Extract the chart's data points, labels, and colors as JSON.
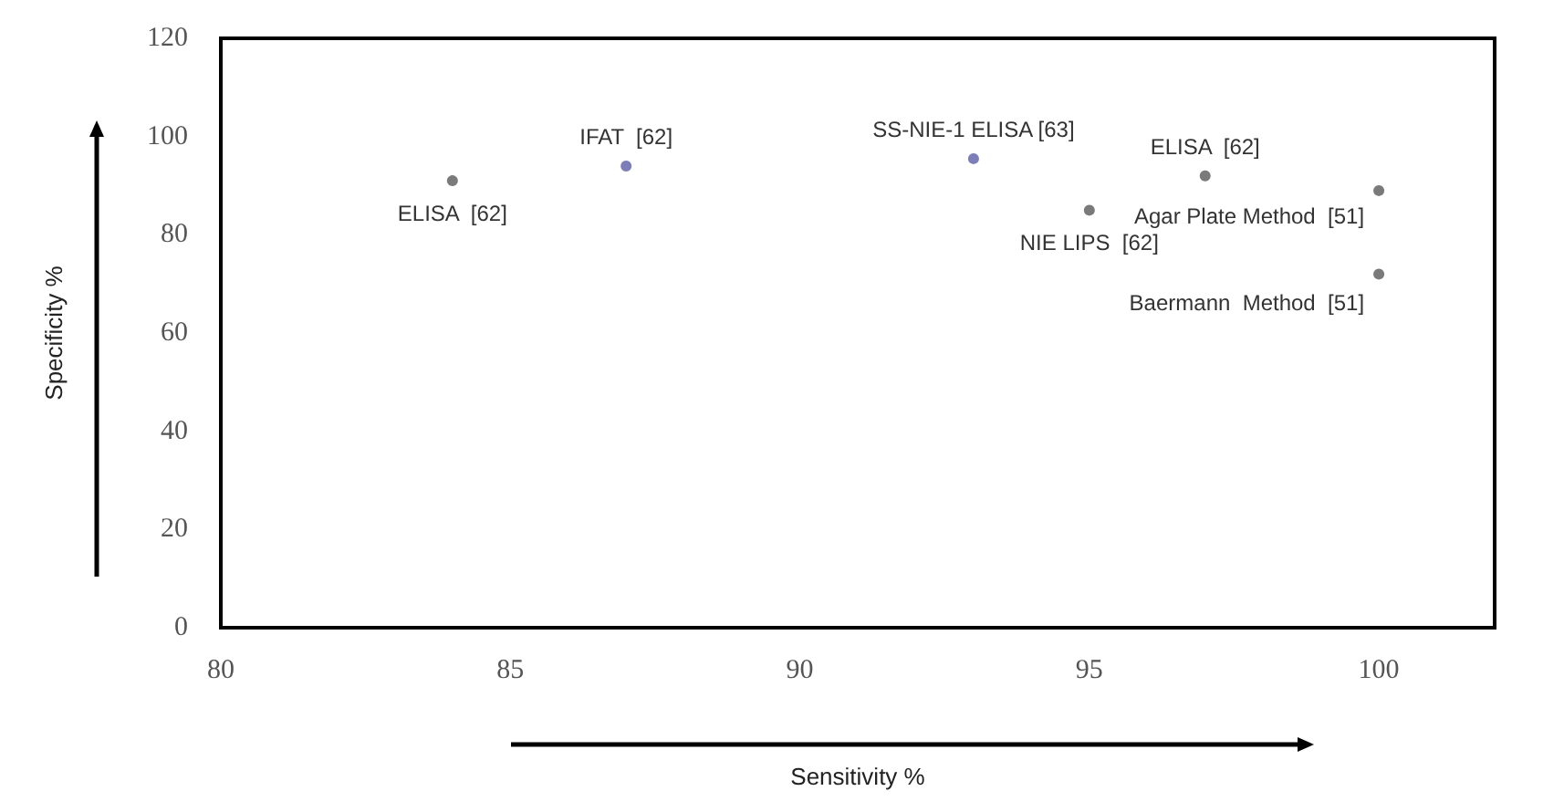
{
  "chart_data": {
    "type": "scatter",
    "x": [
      84,
      87,
      93,
      95,
      97,
      100,
      100
    ],
    "values": [
      91,
      94,
      95.5,
      85,
      92,
      89,
      72
    ],
    "colors": [
      "#595959",
      "#5b5ea6",
      "#5b5ea6",
      "#595959",
      "#595959",
      "#595959",
      "#595959"
    ],
    "xlim": [
      80,
      102
    ],
    "xticks": [
      80,
      85,
      90,
      95,
      100
    ],
    "ylim": [
      0,
      120
    ],
    "yticks": [
      0,
      20,
      40,
      60,
      80,
      100,
      120
    ],
    "xlabel": "Sensitivity %",
    "ylabel": "Specificity %",
    "marker": "circle",
    "annotations": [
      {
        "text": "ELISA  [62]",
        "x": 84,
        "y": 91
      },
      {
        "text": "IFAT  [62]",
        "x": 87,
        "y": 94
      },
      {
        "text": "SS-NIE-1 ELISA [63]",
        "x": 93,
        "y": 95.5
      },
      {
        "text": "NIE LIPS  [62]",
        "x": 95,
        "y": 85
      },
      {
        "text": "ELISA  [62]",
        "x": 97,
        "y": 92
      },
      {
        "text": "Agar Plate Method  [51]",
        "x": 100,
        "y": 89
      },
      {
        "text": "Baermann  Method  [51]",
        "x": 100,
        "y": 72
      }
    ]
  }
}
